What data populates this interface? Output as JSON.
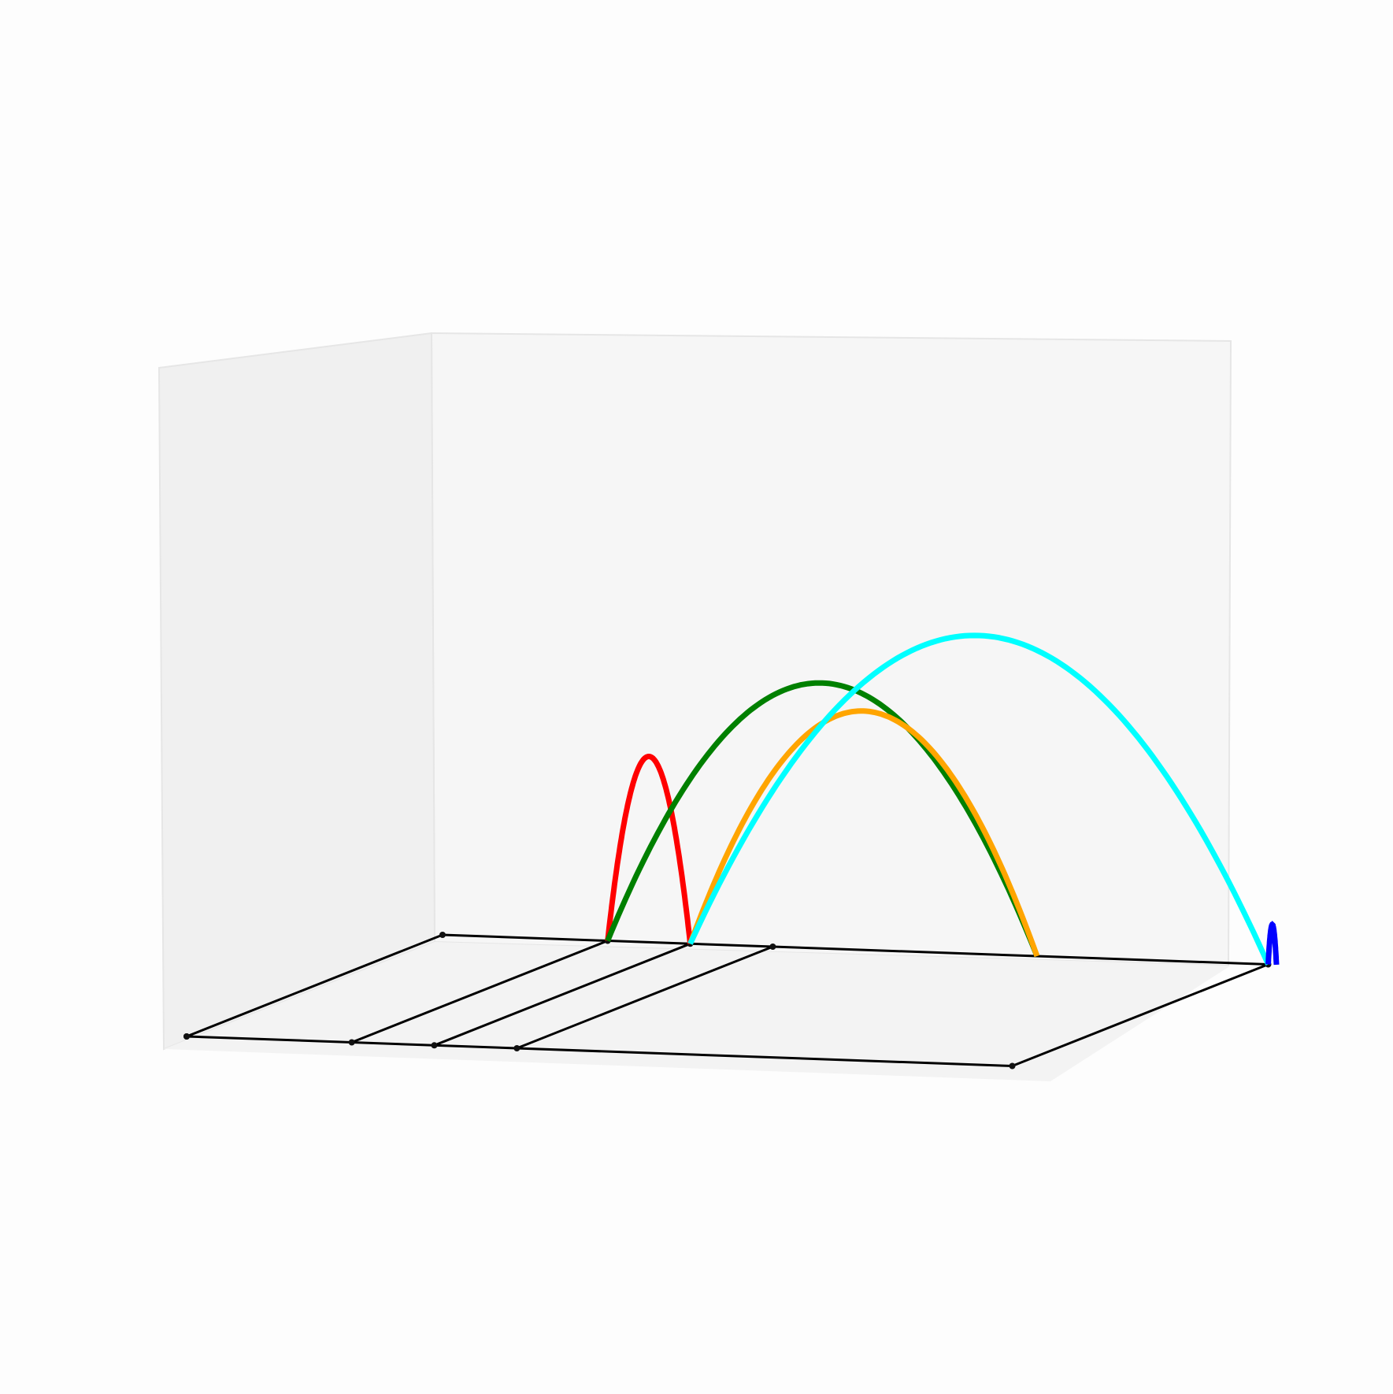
{
  "chart_data": {
    "type": "line",
    "projection": "3d",
    "grid": false,
    "legend": "none",
    "panes": {
      "left_pane_color": "#f0f0f0",
      "back_pane_color": "#f6f6f6",
      "floor_pane_color": "#f3f3f3",
      "edge_color": "#e6e6e6"
    },
    "floor_segments": [
      {
        "color": "#000000",
        "points": [
          [
            0,
            0,
            0
          ],
          [
            5.0,
            0,
            0
          ],
          [
            5.0,
            1.0,
            0
          ],
          [
            0,
            1.0,
            0
          ],
          [
            0,
            0,
            0
          ]
        ]
      },
      {
        "color": "#000000",
        "points": [
          [
            1.0,
            0,
            0
          ],
          [
            1.0,
            1.0,
            0
          ]
        ]
      },
      {
        "color": "#000000",
        "points": [
          [
            1.5,
            0,
            0
          ],
          [
            1.5,
            1.0,
            0
          ]
        ]
      },
      {
        "color": "#000000",
        "points": [
          [
            2.0,
            0,
            0
          ],
          [
            2.0,
            1.0,
            0
          ]
        ]
      }
    ],
    "series": [
      {
        "color": "#ff0000",
        "x_range": [
          1.0,
          1.5
        ],
        "peak_z": 1.4,
        "y": 1.0
      },
      {
        "color": "#008000",
        "x_range": [
          1.0,
          3.6
        ],
        "peak_z": 2.0,
        "y": 1.0
      },
      {
        "color": "#ffa500",
        "x_range": [
          1.5,
          3.6
        ],
        "peak_z": 1.8,
        "y": 1.0
      },
      {
        "color": "#00ffff",
        "x_range": [
          1.5,
          5.0
        ],
        "peak_z": 2.4,
        "y": 1.0
      },
      {
        "color": "#0000ff",
        "x_range": [
          5.0,
          5.05
        ],
        "peak_z": 0.3,
        "y": 1.0
      }
    ]
  }
}
